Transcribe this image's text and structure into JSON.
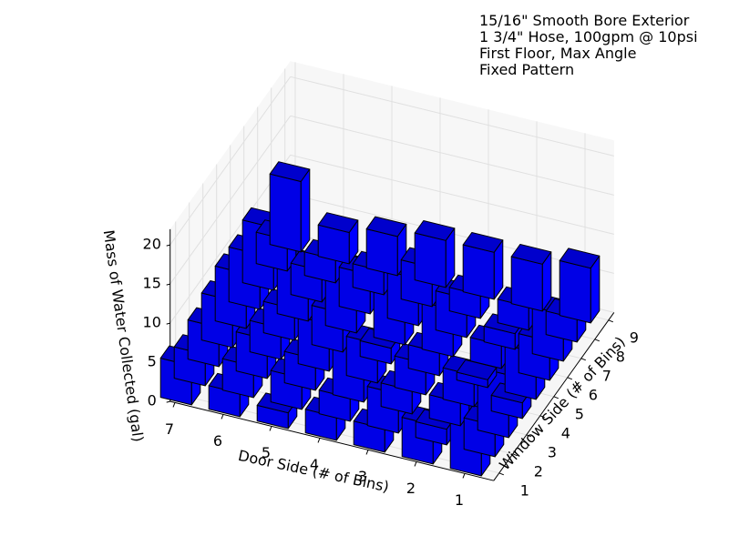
{
  "annotation": [
    "15/16\" Smooth Bore Exterior",
    "1 3/4\" Hose, 100gpm @ 10psi",
    "First Floor, Max Angle",
    "Fixed Pattern"
  ],
  "chart_data": {
    "type": "bar3d",
    "zlabel": "Mass of Water Collected (gal)",
    "xlabel": "Door Side (# of Bins)",
    "ylabel": "Window Side (# of Bins)",
    "x_ticks": [
      1,
      2,
      3,
      4,
      5,
      6,
      7
    ],
    "y_ticks": [
      1,
      2,
      3,
      4,
      5,
      6,
      7,
      8,
      9
    ],
    "z_ticks": [
      0,
      5,
      10,
      15,
      20
    ],
    "zlim": [
      0,
      22
    ],
    "bar_color": "#0000ff",
    "grid": true,
    "values": [
      [
        8,
        4,
        8,
        2,
        6,
        5,
        6,
        3,
        7
      ],
      [
        5,
        2,
        3,
        4,
        1,
        3,
        2,
        3,
        6
      ],
      [
        3,
        5,
        3,
        4,
        3,
        6,
        5,
        3,
        6
      ],
      [
        3,
        3,
        7,
        5,
        2,
        7,
        6,
        5,
        6
      ],
      [
        2,
        4,
        4,
        6,
        5,
        8,
        5,
        3,
        5
      ],
      [
        3,
        4,
        5,
        4,
        4,
        7,
        4,
        3,
        4
      ],
      [
        5,
        4,
        5,
        6,
        7,
        7,
        8,
        4,
        9
      ]
    ]
  }
}
